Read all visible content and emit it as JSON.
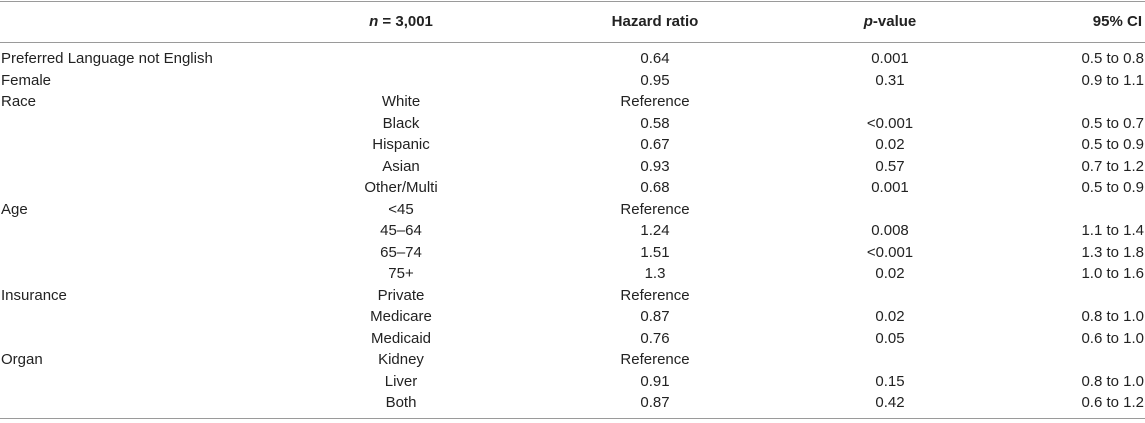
{
  "header": {
    "n_prefix": "n",
    "n_value": " = 3,001",
    "hazard": "Hazard ratio",
    "p_prefix": "p",
    "p_suffix": "-value",
    "ci": "95% CI"
  },
  "rows": [
    {
      "label": "Preferred Language not English",
      "sub": "",
      "hr": "0.64",
      "p": "0.001",
      "ci": "0.5 to 0.8"
    },
    {
      "label": "Female",
      "sub": "",
      "hr": "0.95",
      "p": "0.31",
      "ci": "0.9 to 1.1"
    },
    {
      "label": "Race",
      "sub": "White",
      "hr": "Reference",
      "p": "",
      "ci": ""
    },
    {
      "label": "",
      "sub": "Black",
      "hr": "0.58",
      "p": "<0.001",
      "ci": "0.5 to 0.7"
    },
    {
      "label": "",
      "sub": "Hispanic",
      "hr": "0.67",
      "p": "0.02",
      "ci": "0.5 to 0.9"
    },
    {
      "label": "",
      "sub": "Asian",
      "hr": "0.93",
      "p": "0.57",
      "ci": "0.7 to 1.2"
    },
    {
      "label": "",
      "sub": "Other/Multi",
      "hr": "0.68",
      "p": "0.001",
      "ci": "0.5 to 0.9"
    },
    {
      "label": "Age",
      "sub": "<45",
      "hr": "Reference",
      "p": "",
      "ci": ""
    },
    {
      "label": "",
      "sub": "45–64",
      "hr": "1.24",
      "p": "0.008",
      "ci": "1.1 to 1.4"
    },
    {
      "label": "",
      "sub": "65–74",
      "hr": "1.51",
      "p": "<0.001",
      "ci": "1.3 to 1.8"
    },
    {
      "label": "",
      "sub": "75+",
      "hr": "1.3",
      "p": "0.02",
      "ci": "1.0 to 1.6"
    },
    {
      "label": "Insurance",
      "sub": "Private",
      "hr": "Reference",
      "p": "",
      "ci": ""
    },
    {
      "label": "",
      "sub": "Medicare",
      "hr": "0.87",
      "p": "0.02",
      "ci": "0.8 to 1.0"
    },
    {
      "label": "",
      "sub": "Medicaid",
      "hr": "0.76",
      "p": "0.05",
      "ci": "0.6 to 1.0"
    },
    {
      "label": "Organ",
      "sub": "Kidney",
      "hr": "Reference",
      "p": "",
      "ci": ""
    },
    {
      "label": "",
      "sub": "Liver",
      "hr": "0.91",
      "p": "0.15",
      "ci": "0.8 to 1.0"
    },
    {
      "label": "",
      "sub": "Both",
      "hr": "0.87",
      "p": "0.42",
      "ci": "0.6 to 1.2"
    }
  ]
}
